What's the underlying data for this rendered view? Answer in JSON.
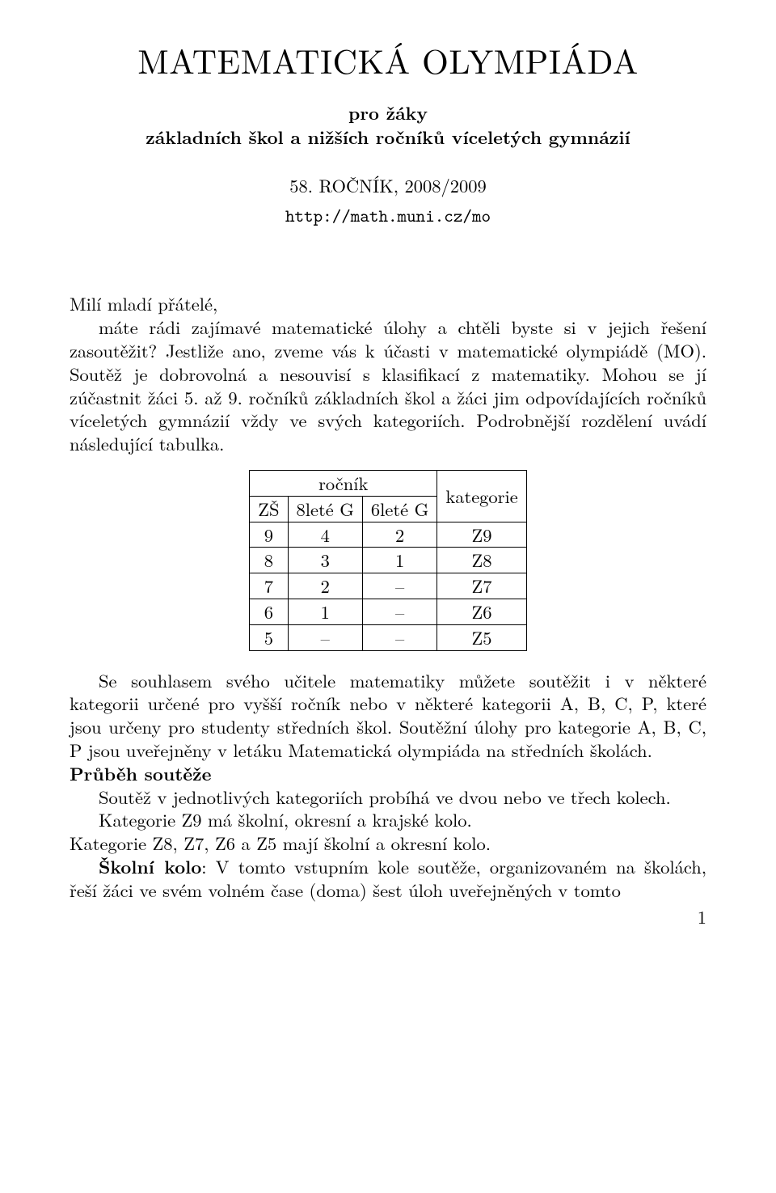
{
  "header": {
    "title": "MATEMATICKÁ OLYMPIÁDA",
    "subtitle_line1": "pro žáky",
    "subtitle_line2": "základních škol a nižších ročníků víceletých gymnázií",
    "edition": "58. ROČNÍK, 2008/2009",
    "url": "http://math.muni.cz/mo"
  },
  "intro": {
    "salutation": "Milí mladí přátelé,",
    "p1": "máte rádi zajímavé matematické úlohy a chtěli byste si v jejich řešení zasoutěžit? Jestliže ano, zveme vás k účasti v matematické olympiádě (MO). Soutěž je dobrovolná a nesouvisí s klasifikací z matematiky. Mohou se jí zúčastnit žáci 5. až 9. ročníků základních škol a žáci jim odpovídajících ročníků víceletých gymnázií vždy ve svých kategoriích. Podrobnější rozdělení uvádí následující tabulka."
  },
  "table": {
    "header_rocnik": "ročník",
    "header_kategorie": "kategorie",
    "subheaders": [
      "ZŠ",
      "8leté G",
      "6leté G"
    ],
    "rows": [
      [
        "9",
        "4",
        "2",
        "Z9"
      ],
      [
        "8",
        "3",
        "1",
        "Z8"
      ],
      [
        "7",
        "2",
        "–",
        "Z7"
      ],
      [
        "6",
        "1",
        "–",
        "Z6"
      ],
      [
        "5",
        "–",
        "–",
        "Z5"
      ]
    ]
  },
  "after_table": {
    "p1": "Se souhlasem svého učitele matematiky můžete soutěžit i v některé kategorii určené pro vyšší ročník nebo v některé kategorii A, B, C, P, které jsou určeny pro studenty středních škol. Soutěžní úlohy pro kategorie A, B, C, P jsou uveřejněny v letáku Matematická olympiáda na středních školách."
  },
  "prubeh": {
    "heading": "Průběh soutěže",
    "p1": "Soutěž v jednotlivých kategoriích probíhá ve dvou nebo ve třech kolech.",
    "p2a": "Kategorie Z9 má školní, okresní a krajské kolo.",
    "p2b": "Kategorie Z8, Z7, Z6 a Z5 mají školní a okresní kolo.",
    "p3_strong": "Školní kolo",
    "p3_rest": ": V tomto vstupním kole soutěže, organizovaném na školách, řeší žáci ve svém volném čase (doma) šest úloh uveřejněných v tomto"
  },
  "page_number": "1"
}
